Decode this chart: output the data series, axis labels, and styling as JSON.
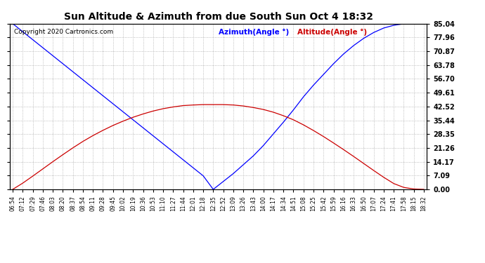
{
  "title": "Sun Altitude & Azimuth from due South Sun Oct 4 18:32",
  "copyright": "Copyright 2020 Cartronics.com",
  "legend_azimuth": "Azimuth(Angle °)",
  "legend_altitude": "Altitude(Angle °)",
  "azimuth_color": "#0000ff",
  "altitude_color": "#cc0000",
  "background_color": "#ffffff",
  "grid_color": "#aaaaaa",
  "yticks": [
    0.0,
    7.09,
    14.17,
    21.26,
    28.35,
    35.44,
    42.52,
    49.61,
    56.7,
    63.78,
    70.87,
    77.96,
    85.04
  ],
  "ylim": [
    0.0,
    85.04
  ],
  "time_labels": [
    "06:54",
    "07:12",
    "07:29",
    "07:46",
    "08:03",
    "08:20",
    "08:37",
    "08:54",
    "09:11",
    "09:28",
    "09:45",
    "10:02",
    "10:19",
    "10:36",
    "10:53",
    "11:10",
    "11:27",
    "11:44",
    "12:01",
    "12:18",
    "12:35",
    "12:52",
    "13:09",
    "13:26",
    "13:43",
    "14:00",
    "14:17",
    "14:34",
    "14:51",
    "15:08",
    "15:25",
    "15:42",
    "15:59",
    "16:16",
    "16:33",
    "16:50",
    "17:07",
    "17:24",
    "17:41",
    "17:58",
    "18:15",
    "18:32"
  ],
  "azimuth_values": [
    85.04,
    80.93,
    76.82,
    72.71,
    68.6,
    64.49,
    60.38,
    56.27,
    52.16,
    48.05,
    43.94,
    39.83,
    35.72,
    31.61,
    27.5,
    23.39,
    19.28,
    15.17,
    11.06,
    6.95,
    0.0,
    4.05,
    8.1,
    12.65,
    17.2,
    22.5,
    28.5,
    34.5,
    40.8,
    47.5,
    53.5,
    59.0,
    64.5,
    69.5,
    73.8,
    77.5,
    80.5,
    82.8,
    84.2,
    85.0,
    85.04,
    85.04
  ],
  "altitude_values": [
    0.0,
    3.2,
    6.8,
    10.5,
    14.2,
    17.8,
    21.3,
    24.6,
    27.6,
    30.3,
    32.8,
    35.0,
    37.0,
    38.7,
    40.2,
    41.4,
    42.3,
    43.0,
    43.3,
    43.5,
    43.5,
    43.5,
    43.3,
    42.8,
    42.0,
    41.0,
    39.6,
    37.8,
    35.7,
    33.1,
    30.2,
    27.1,
    23.8,
    20.4,
    16.9,
    13.3,
    9.7,
    6.2,
    3.0,
    1.0,
    0.2,
    0.0
  ]
}
